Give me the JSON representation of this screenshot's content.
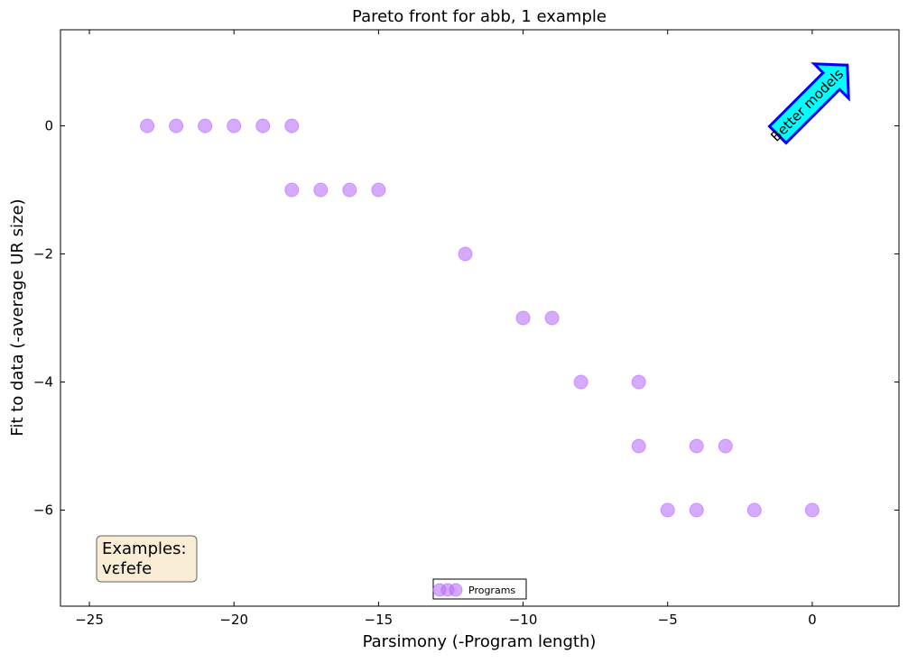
{
  "chart_data": {
    "type": "scatter",
    "title": "Pareto front for abb, 1 example",
    "xlabel": "Parsimony (-Program length)",
    "ylabel": "Fit to data (-average UR size)",
    "xlim": [
      -26,
      3
    ],
    "ylim": [
      -7.5,
      1.5
    ],
    "x_ticks": [
      -25,
      -20,
      -15,
      -10,
      -5,
      0
    ],
    "y_ticks": [
      0,
      -2,
      -4,
      -6
    ],
    "x_tick_labels": [
      "−25",
      "−20",
      "−15",
      "−10",
      "−5",
      "0"
    ],
    "y_tick_labels": [
      "0",
      "−2",
      "−4",
      "−6"
    ],
    "grid": false,
    "legend_position": "bottom-center",
    "series": [
      {
        "name": "Programs",
        "color": "#b266ff",
        "points": [
          {
            "x": -23,
            "y": 0
          },
          {
            "x": -22,
            "y": 0
          },
          {
            "x": -21,
            "y": 0
          },
          {
            "x": -20,
            "y": 0
          },
          {
            "x": -19,
            "y": 0
          },
          {
            "x": -18,
            "y": 0
          },
          {
            "x": -18,
            "y": -1
          },
          {
            "x": -17,
            "y": -1
          },
          {
            "x": -16,
            "y": -1
          },
          {
            "x": -15,
            "y": -1
          },
          {
            "x": -12,
            "y": -2
          },
          {
            "x": -10,
            "y": -3
          },
          {
            "x": -9,
            "y": -3
          },
          {
            "x": -8,
            "y": -4
          },
          {
            "x": -6,
            "y": -4
          },
          {
            "x": -6,
            "y": -5
          },
          {
            "x": -4,
            "y": -5
          },
          {
            "x": -3,
            "y": -5
          },
          {
            "x": -5,
            "y": -6
          },
          {
            "x": -4,
            "y": -6
          },
          {
            "x": -2,
            "y": -6
          },
          {
            "x": 0,
            "y": -6
          }
        ]
      }
    ],
    "annotations": {
      "arrow_label": "Better models",
      "arrow_fill": "#00ffff",
      "arrow_stroke": "#0000ff",
      "examples_line1": "Examples:",
      "examples_line2": "vɛfefe",
      "examples_box_fill": "#f5deb3"
    }
  }
}
